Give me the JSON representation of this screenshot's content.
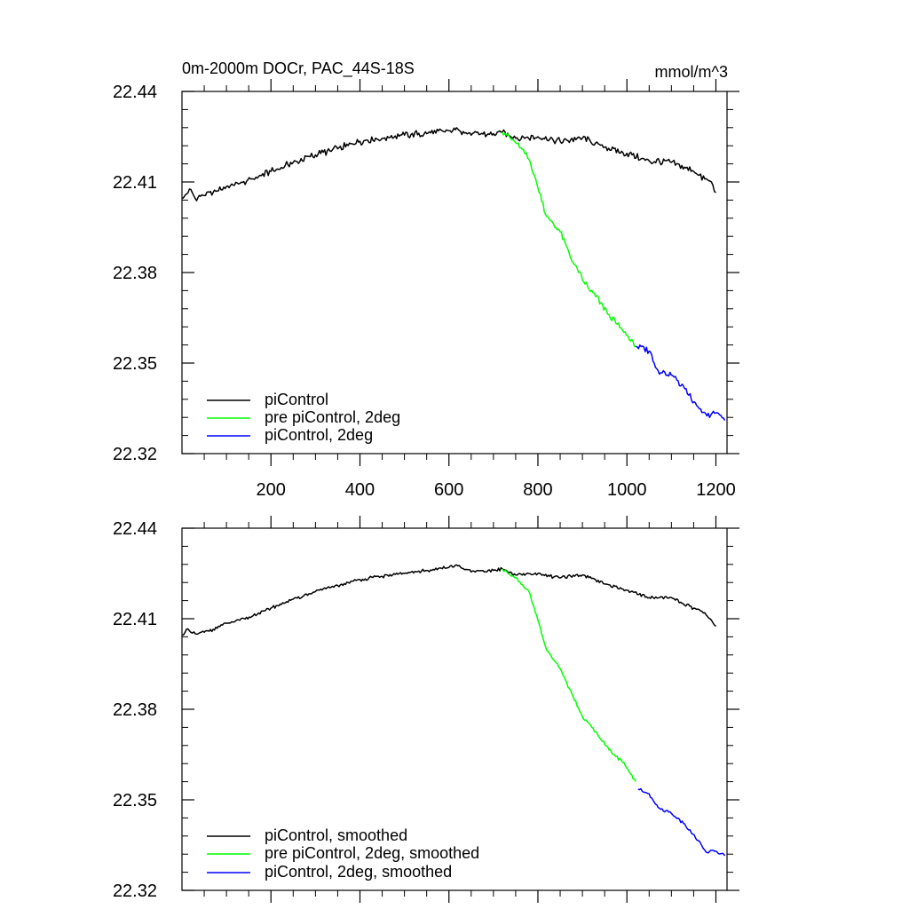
{
  "figure": {
    "title": "0m-2000m DOCr, PAC_44S-18S",
    "units": "mmol/m^3"
  },
  "chart_data": [
    {
      "type": "line",
      "title": "0m-2000m DOCr, PAC_44S-18S",
      "units": "mmol/m^3",
      "xlabel": "",
      "ylabel": "",
      "xlim": [
        0,
        1225
      ],
      "ylim": [
        22.32,
        22.44
      ],
      "x_ticks": [
        200,
        400,
        600,
        800,
        1000,
        1200
      ],
      "x_tick_labels": [
        "200",
        "400",
        "600",
        "800",
        "1000",
        "1200"
      ],
      "y_ticks": [
        22.32,
        22.35,
        22.38,
        22.41,
        22.44
      ],
      "y_tick_labels": [
        "22.32",
        "22.35",
        "22.38",
        "22.41",
        "22.44"
      ],
      "grid": false,
      "legend_position": "bottom-left",
      "series": [
        {
          "name": "piControl",
          "color": "#000000",
          "points": [
            [
              1,
              22.4045
            ],
            [
              10,
              22.406
            ],
            [
              20,
              22.4075
            ],
            [
              30,
              22.4045
            ],
            [
              50,
              22.4055
            ],
            [
              70,
              22.4065
            ],
            [
              100,
              22.4085
            ],
            [
              130,
              22.4095
            ],
            [
              160,
              22.411
            ],
            [
              200,
              22.4135
            ],
            [
              250,
              22.4165
            ],
            [
              300,
              22.419
            ],
            [
              350,
              22.421
            ],
            [
              400,
              22.4235
            ],
            [
              450,
              22.4245
            ],
            [
              500,
              22.4255
            ],
            [
              550,
              22.426
            ],
            [
              600,
              22.427
            ],
            [
              620,
              22.4275
            ],
            [
              650,
              22.4255
            ],
            [
              700,
              22.426
            ],
            [
              720,
              22.4265
            ],
            [
              750,
              22.4245
            ],
            [
              800,
              22.425
            ],
            [
              850,
              22.4235
            ],
            [
              900,
              22.4245
            ],
            [
              950,
              22.4215
            ],
            [
              1000,
              22.4195
            ],
            [
              1050,
              22.417
            ],
            [
              1100,
              22.4165
            ],
            [
              1150,
              22.4135
            ],
            [
              1175,
              22.411
            ],
            [
              1190,
              22.41
            ],
            [
              1200,
              22.4065
            ]
          ]
        },
        {
          "name": "pre piControl, 2deg",
          "color": "#00ff00",
          "points": [
            [
              720,
              22.4265
            ],
            [
              750,
              22.423
            ],
            [
              780,
              22.4175
            ],
            [
              800,
              22.408
            ],
            [
              820,
              22.3985
            ],
            [
              850,
              22.3935
            ],
            [
              870,
              22.3865
            ],
            [
              900,
              22.3775
            ],
            [
              930,
              22.372
            ],
            [
              960,
              22.366
            ],
            [
              990,
              22.361
            ],
            [
              1020,
              22.3555
            ]
          ]
        },
        {
          "name": "piControl, 2deg",
          "color": "#0000ff",
          "points": [
            [
              1020,
              22.3555
            ],
            [
              1050,
              22.354
            ],
            [
              1070,
              22.3475
            ],
            [
              1100,
              22.346
            ],
            [
              1130,
              22.3415
            ],
            [
              1160,
              22.3355
            ],
            [
              1180,
              22.3325
            ],
            [
              1200,
              22.3335
            ],
            [
              1220,
              22.331
            ]
          ]
        }
      ]
    },
    {
      "type": "line",
      "title": "",
      "units": "",
      "xlabel": "",
      "ylabel": "",
      "xlim": [
        0,
        1225
      ],
      "ylim": [
        22.32,
        22.44
      ],
      "x_ticks": [
        200,
        400,
        600,
        800,
        1000,
        1200
      ],
      "x_tick_labels": [],
      "y_ticks": [
        22.32,
        22.35,
        22.38,
        22.41,
        22.44
      ],
      "y_tick_labels": [
        "22.32",
        "22.35",
        "22.38",
        "22.41",
        "22.44"
      ],
      "grid": false,
      "legend_position": "bottom-left",
      "series": [
        {
          "name": "piControl, smoothed",
          "color": "#000000",
          "points": [
            [
              1,
              22.4045
            ],
            [
              10,
              22.4065
            ],
            [
              20,
              22.4055
            ],
            [
              30,
              22.405
            ],
            [
              50,
              22.4055
            ],
            [
              70,
              22.4065
            ],
            [
              100,
              22.4085
            ],
            [
              130,
              22.4095
            ],
            [
              160,
              22.411
            ],
            [
              200,
              22.4135
            ],
            [
              250,
              22.4165
            ],
            [
              300,
              22.419
            ],
            [
              350,
              22.421
            ],
            [
              400,
              22.423
            ],
            [
              450,
              22.424
            ],
            [
              500,
              22.425
            ],
            [
              550,
              22.426
            ],
            [
              600,
              22.427
            ],
            [
              620,
              22.4275
            ],
            [
              650,
              22.4255
            ],
            [
              700,
              22.426
            ],
            [
              720,
              22.4265
            ],
            [
              750,
              22.4245
            ],
            [
              800,
              22.425
            ],
            [
              850,
              22.4235
            ],
            [
              900,
              22.4245
            ],
            [
              950,
              22.4215
            ],
            [
              1000,
              22.4195
            ],
            [
              1050,
              22.417
            ],
            [
              1100,
              22.417
            ],
            [
              1150,
              22.4135
            ],
            [
              1175,
              22.412
            ],
            [
              1190,
              22.4095
            ],
            [
              1200,
              22.4075
            ]
          ]
        },
        {
          "name": "pre piControl, 2deg, smoothed",
          "color": "#00ff00",
          "points": [
            [
              720,
              22.4265
            ],
            [
              750,
              22.4235
            ],
            [
              780,
              22.419
            ],
            [
              800,
              22.4095
            ],
            [
              820,
              22.3995
            ],
            [
              850,
              22.3935
            ],
            [
              870,
              22.387
            ],
            [
              900,
              22.3775
            ],
            [
              930,
              22.3725
            ],
            [
              960,
              22.3665
            ],
            [
              990,
              22.3625
            ],
            [
              1020,
              22.356
            ]
          ]
        },
        {
          "name": "piControl, 2deg, smoothed",
          "color": "#0000ff",
          "points": [
            [
              1025,
              22.3535
            ],
            [
              1050,
              22.352
            ],
            [
              1070,
              22.3475
            ],
            [
              1100,
              22.3455
            ],
            [
              1130,
              22.342
            ],
            [
              1160,
              22.3365
            ],
            [
              1180,
              22.3325
            ],
            [
              1200,
              22.333
            ],
            [
              1220,
              22.3315
            ]
          ]
        }
      ]
    }
  ]
}
